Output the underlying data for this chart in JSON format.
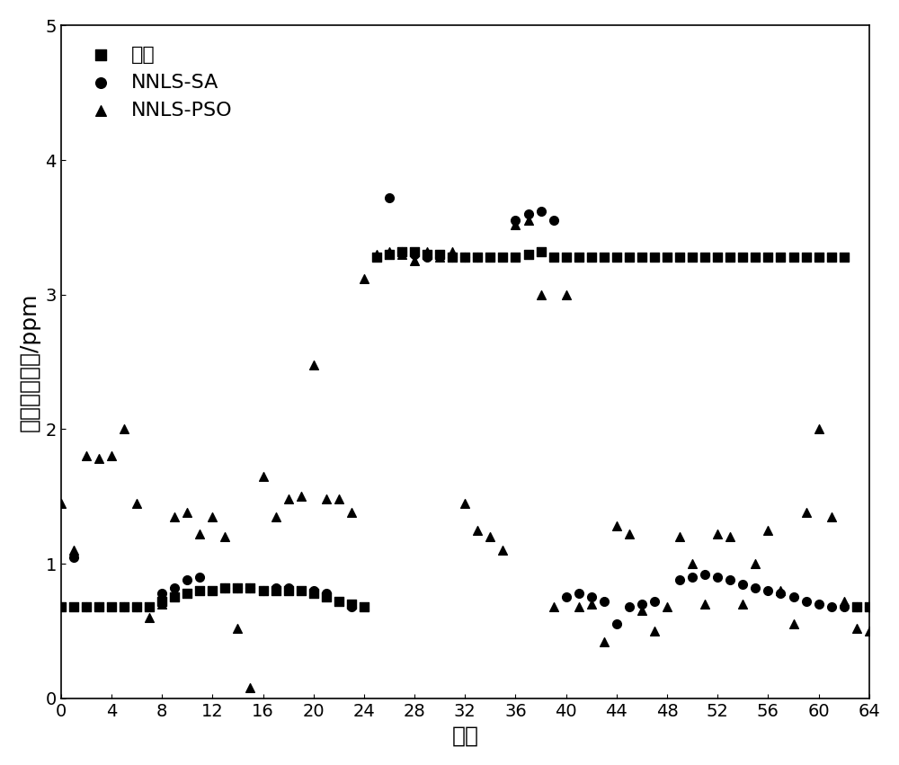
{
  "title": "",
  "xlabel": "网格",
  "ylabel": "烟黑体积分数/ppm",
  "xlim": [
    0,
    64
  ],
  "ylim": [
    0,
    5
  ],
  "xticks": [
    0,
    4,
    8,
    12,
    16,
    20,
    24,
    28,
    32,
    36,
    40,
    44,
    48,
    52,
    56,
    60,
    64
  ],
  "yticks": [
    0,
    1,
    2,
    3,
    4,
    5
  ],
  "legend_labels": [
    "真值",
    "NNLS-SA",
    "NNLS-PSO"
  ],
  "truth_x": [
    0,
    1,
    2,
    3,
    4,
    5,
    6,
    7,
    8,
    9,
    10,
    11,
    12,
    13,
    14,
    15,
    16,
    17,
    18,
    19,
    20,
    21,
    22,
    23,
    24,
    25,
    26,
    27,
    28,
    29,
    30,
    31,
    32,
    33,
    34,
    35,
    36,
    37,
    38,
    39,
    40,
    41,
    42,
    43,
    44,
    45,
    46,
    47,
    48,
    49,
    50,
    51,
    52,
    53,
    54,
    55,
    56,
    57,
    58,
    59,
    60,
    61,
    62,
    63,
    64
  ],
  "truth_y": [
    0.68,
    0.68,
    0.68,
    0.68,
    0.68,
    0.68,
    0.68,
    0.68,
    0.72,
    0.75,
    0.78,
    0.8,
    0.8,
    0.82,
    0.82,
    0.82,
    0.8,
    0.8,
    0.8,
    0.8,
    0.78,
    0.75,
    0.72,
    0.7,
    0.68,
    3.28,
    3.3,
    3.32,
    3.32,
    3.3,
    3.3,
    3.28,
    3.28,
    3.28,
    3.28,
    3.28,
    3.28,
    3.3,
    3.32,
    3.28,
    3.28,
    3.28,
    3.28,
    3.28,
    3.28,
    3.28,
    3.28,
    3.28,
    3.28,
    3.28,
    3.28,
    3.28,
    3.28,
    3.28,
    3.28,
    3.28,
    3.28,
    3.28,
    3.28,
    3.28,
    3.28,
    3.28,
    3.28,
    0.68,
    0.68
  ],
  "nnls_sa_x": [
    1,
    2,
    3,
    5,
    6,
    8,
    9,
    10,
    11,
    13,
    14,
    15,
    16,
    17,
    18,
    20,
    21,
    23,
    26,
    27,
    28,
    29,
    30,
    31,
    32,
    33,
    36,
    37,
    38,
    39,
    40,
    41,
    42,
    43,
    44,
    45,
    46,
    47,
    49,
    50,
    51,
    52,
    53,
    54,
    55,
    56,
    57,
    58,
    59,
    60,
    61,
    62,
    63,
    64
  ],
  "nnls_sa_y": [
    1.05,
    0.68,
    0.68,
    0.68,
    0.68,
    0.78,
    0.82,
    0.88,
    0.9,
    0.82,
    0.82,
    0.82,
    0.8,
    0.82,
    0.82,
    0.8,
    0.78,
    0.68,
    3.72,
    3.32,
    3.3,
    3.28,
    3.28,
    3.28,
    3.28,
    3.28,
    3.55,
    3.6,
    3.62,
    3.55,
    0.75,
    0.78,
    0.75,
    0.72,
    0.55,
    0.68,
    0.7,
    0.72,
    0.88,
    0.9,
    0.92,
    0.9,
    0.88,
    0.85,
    0.82,
    0.8,
    0.78,
    0.75,
    0.72,
    0.7,
    0.68,
    0.68,
    0.68,
    0.68
  ],
  "nnls_pso_x": [
    0,
    1,
    2,
    3,
    4,
    5,
    6,
    7,
    8,
    9,
    10,
    11,
    12,
    13,
    14,
    15,
    16,
    17,
    18,
    19,
    20,
    21,
    22,
    23,
    24,
    25,
    26,
    27,
    28,
    29,
    30,
    31,
    32,
    33,
    34,
    35,
    36,
    37,
    38,
    39,
    40,
    41,
    42,
    43,
    44,
    45,
    46,
    47,
    48,
    49,
    50,
    51,
    52,
    53,
    54,
    55,
    56,
    57,
    58,
    59,
    60,
    61,
    62,
    63,
    64
  ],
  "nnls_pso_y": [
    1.45,
    1.1,
    1.8,
    1.78,
    1.8,
    2.0,
    1.45,
    0.6,
    0.7,
    1.35,
    1.38,
    1.22,
    1.35,
    1.2,
    0.52,
    0.08,
    1.65,
    1.35,
    1.48,
    1.5,
    2.48,
    1.48,
    1.48,
    1.38,
    3.12,
    3.3,
    3.32,
    3.3,
    3.25,
    3.32,
    3.28,
    3.32,
    1.45,
    1.25,
    1.2,
    1.1,
    3.52,
    3.55,
    3.0,
    0.68,
    3.0,
    0.68,
    0.7,
    0.42,
    1.28,
    1.22,
    0.65,
    0.5,
    0.68,
    1.2,
    1.0,
    0.7,
    1.22,
    1.2,
    0.7,
    1.0,
    1.25,
    0.8,
    0.55,
    1.38,
    2.0,
    1.35,
    0.72,
    0.52,
    0.5
  ],
  "marker_size": 7,
  "color": "black",
  "background_color": "white"
}
